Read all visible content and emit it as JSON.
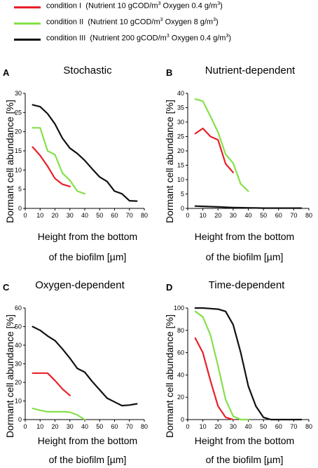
{
  "legend": [
    {
      "name": "condition I",
      "text": "(Nutrient 10 gCOD/m",
      "mid": " Oxygen 0.4 g/m",
      "end": ")",
      "color": "#e8202a"
    },
    {
      "name": "condition II",
      "text": "(Nutrient 10 gCOD/m",
      "mid": " Oxygen 8 g/m",
      "end": ")",
      "color": "#86e04a"
    },
    {
      "name": "condition III",
      "text": "(Nutrient 200 gCOD/m",
      "mid": " Oxygen 0.4 g/m",
      "end": ")",
      "color": "#111111"
    }
  ],
  "axis_text": {
    "ylabel": "Dormant cell abundance [%]",
    "xlabel_line1": "Height from the bottom",
    "xlabel_line2": "of the biofilm [µm]"
  },
  "chart_data": [
    {
      "type": "line",
      "panel": "A",
      "title": "Stochastic",
      "xlabel": "Height from the bottom of the biofilm [µm]",
      "ylabel": "Dormant cell abundance [%]",
      "xlim": [
        0,
        80
      ],
      "ylim": [
        0,
        30
      ],
      "xticks": [
        0,
        10,
        20,
        30,
        40,
        50,
        60,
        70,
        80
      ],
      "yticks": [
        0,
        5,
        10,
        15,
        20,
        25,
        30
      ],
      "series": [
        {
          "name": "condition I",
          "color": "#e8202a",
          "x": [
            5,
            10,
            15,
            20,
            25,
            30
          ],
          "y": [
            16,
            13.8,
            11,
            7.8,
            6.3,
            5.7
          ]
        },
        {
          "name": "condition II",
          "color": "#86e04a",
          "x": [
            5,
            10,
            15,
            20,
            25,
            30,
            35,
            40
          ],
          "y": [
            21,
            21,
            15,
            14,
            9.2,
            7.3,
            4.5,
            3.8
          ]
        },
        {
          "name": "condition III",
          "color": "#111111",
          "x": [
            5,
            10,
            15,
            20,
            25,
            30,
            35,
            40,
            45,
            50,
            55,
            60,
            65,
            70,
            75
          ],
          "y": [
            27,
            26.5,
            24.7,
            22,
            18.3,
            15.7,
            14.3,
            12.5,
            10.3,
            8.2,
            7,
            4.5,
            3.8,
            2,
            1.9
          ]
        }
      ]
    },
    {
      "type": "line",
      "panel": "B",
      "title": "Nutrient-dependent",
      "xlabel": "Height from the bottom of the biofilm [µm]",
      "ylabel": "Dormant cell abundance [%]",
      "xlim": [
        0,
        80
      ],
      "ylim": [
        0,
        40
      ],
      "xticks": [
        0,
        10,
        20,
        30,
        40,
        50,
        60,
        70,
        80
      ],
      "yticks": [
        0,
        5,
        10,
        15,
        20,
        25,
        30,
        35,
        40
      ],
      "series": [
        {
          "name": "condition I",
          "color": "#e8202a",
          "x": [
            5,
            10,
            15,
            20,
            25,
            30
          ],
          "y": [
            26,
            27.8,
            25,
            23.8,
            15.5,
            12.5
          ]
        },
        {
          "name": "condition II",
          "color": "#86e04a",
          "x": [
            5,
            10,
            15,
            20,
            25,
            30,
            35,
            40
          ],
          "y": [
            38,
            37.3,
            32,
            26.5,
            18.8,
            15.7,
            8.5,
            6
          ]
        },
        {
          "name": "condition III",
          "color": "#111111",
          "x": [
            5,
            10,
            15,
            20,
            25,
            30,
            35,
            40,
            45,
            50,
            55,
            60,
            65,
            70,
            75
          ],
          "y": [
            0.8,
            0.7,
            0.6,
            0.5,
            0.4,
            0.3,
            0.25,
            0.2,
            0.15,
            0.1,
            0.1,
            0.1,
            0.1,
            0.1,
            0.1
          ]
        }
      ]
    },
    {
      "type": "line",
      "panel": "C",
      "title": "Oxygen-dependent",
      "xlabel": "Height from the bottom of the biofilm [µm]",
      "ylabel": "Dormant cell abundance [%]",
      "xlim": [
        0,
        80
      ],
      "ylim": [
        0,
        60
      ],
      "xticks": [
        0,
        10,
        20,
        30,
        40,
        50,
        60,
        70,
        80
      ],
      "yticks": [
        0,
        10,
        20,
        30,
        40,
        50,
        60
      ],
      "series": [
        {
          "name": "condition I",
          "color": "#e8202a",
          "x": [
            5,
            10,
            15,
            20,
            25,
            30
          ],
          "y": [
            25,
            25,
            25,
            21,
            16.5,
            13
          ]
        },
        {
          "name": "condition II",
          "color": "#86e04a",
          "x": [
            5,
            10,
            15,
            20,
            25,
            30,
            35,
            40
          ],
          "y": [
            6,
            5,
            4.2,
            4.2,
            4.2,
            4,
            2.5,
            0
          ]
        },
        {
          "name": "condition III",
          "color": "#111111",
          "x": [
            5,
            10,
            15,
            20,
            25,
            30,
            35,
            40,
            45,
            50,
            55,
            60,
            65,
            70,
            75
          ],
          "y": [
            50,
            48,
            45,
            42.5,
            38,
            33,
            27.5,
            25.5,
            20.5,
            16,
            11.5,
            9.5,
            7.5,
            7.8,
            8.5
          ]
        }
      ]
    },
    {
      "type": "line",
      "panel": "D",
      "title": "Time-dependent",
      "xlabel": "Height from the bottom of the biofilm [µm]",
      "ylabel": "Dormant cell abundance [%]",
      "xlim": [
        0,
        80
      ],
      "ylim": [
        0,
        100
      ],
      "xticks": [
        0,
        10,
        20,
        30,
        40,
        50,
        60,
        70,
        80
      ],
      "yticks": [
        0,
        20,
        40,
        60,
        80,
        100
      ],
      "series": [
        {
          "name": "condition I",
          "color": "#e8202a",
          "x": [
            5,
            10,
            15,
            20,
            25,
            30
          ],
          "y": [
            73,
            60,
            35,
            12,
            2,
            0
          ]
        },
        {
          "name": "condition II",
          "color": "#86e04a",
          "x": [
            5,
            10,
            15,
            20,
            25,
            30,
            35,
            40
          ],
          "y": [
            97,
            92,
            76,
            48,
            18,
            3,
            0,
            0
          ]
        },
        {
          "name": "condition III",
          "color": "#111111",
          "x": [
            5,
            10,
            15,
            20,
            25,
            30,
            35,
            40,
            45,
            50,
            55,
            60,
            65,
            70,
            75
          ],
          "y": [
            100,
            100,
            99.5,
            99,
            97,
            85,
            60,
            30,
            12,
            2,
            0,
            0,
            0,
            0,
            0
          ]
        }
      ]
    }
  ]
}
